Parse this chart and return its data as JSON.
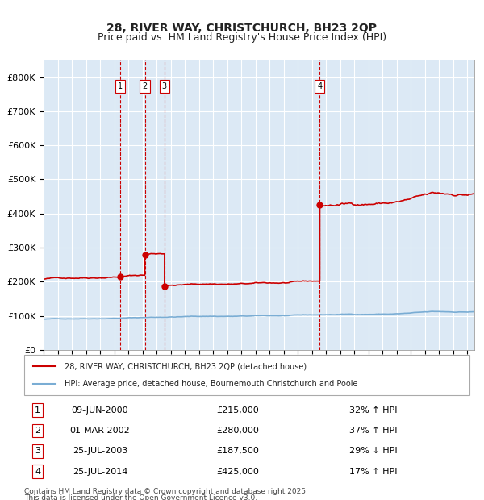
{
  "title_line1": "28, RIVER WAY, CHRISTCHURCH, BH23 2QP",
  "title_line2": "Price paid vs. HM Land Registry's House Price Index (HPI)",
  "background_color": "#ffffff",
  "plot_bg_color": "#dce9f5",
  "grid_color": "#ffffff",
  "ylabel": "",
  "xlim_start": 1995.0,
  "xlim_end": 2025.5,
  "ylim_min": 0,
  "ylim_max": 850000,
  "yticks": [
    0,
    100000,
    200000,
    300000,
    400000,
    500000,
    600000,
    700000,
    800000
  ],
  "ytick_labels": [
    "£0",
    "£100K",
    "£200K",
    "£300K",
    "£400K",
    "£500K",
    "£600K",
    "£700K",
    "£800K"
  ],
  "hpi_color": "#7aadd4",
  "price_color": "#cc0000",
  "sale_dot_color": "#cc0000",
  "vline_color": "#cc0000",
  "legend_line1": "28, RIVER WAY, CHRISTCHURCH, BH23 2QP (detached house)",
  "legend_line2": "HPI: Average price, detached house, Bournemouth Christchurch and Poole",
  "transactions": [
    {
      "num": 1,
      "date": "09-JUN-2000",
      "date_x": 2000.44,
      "price": 215000,
      "pct": "32%",
      "dir": "↑"
    },
    {
      "num": 2,
      "date": "01-MAR-2002",
      "date_x": 2002.17,
      "price": 280000,
      "pct": "37%",
      "dir": "↑"
    },
    {
      "num": 3,
      "date": "25-JUL-2003",
      "date_x": 2003.56,
      "price": 187500,
      "pct": "29%",
      "dir": "↓"
    },
    {
      "num": 4,
      "date": "25-JUL-2014",
      "date_x": 2014.56,
      "price": 425000,
      "pct": "17%",
      "dir": "↑"
    }
  ],
  "footer_line1": "Contains HM Land Registry data © Crown copyright and database right 2025.",
  "footer_line2": "This data is licensed under the Open Government Licence v3.0."
}
